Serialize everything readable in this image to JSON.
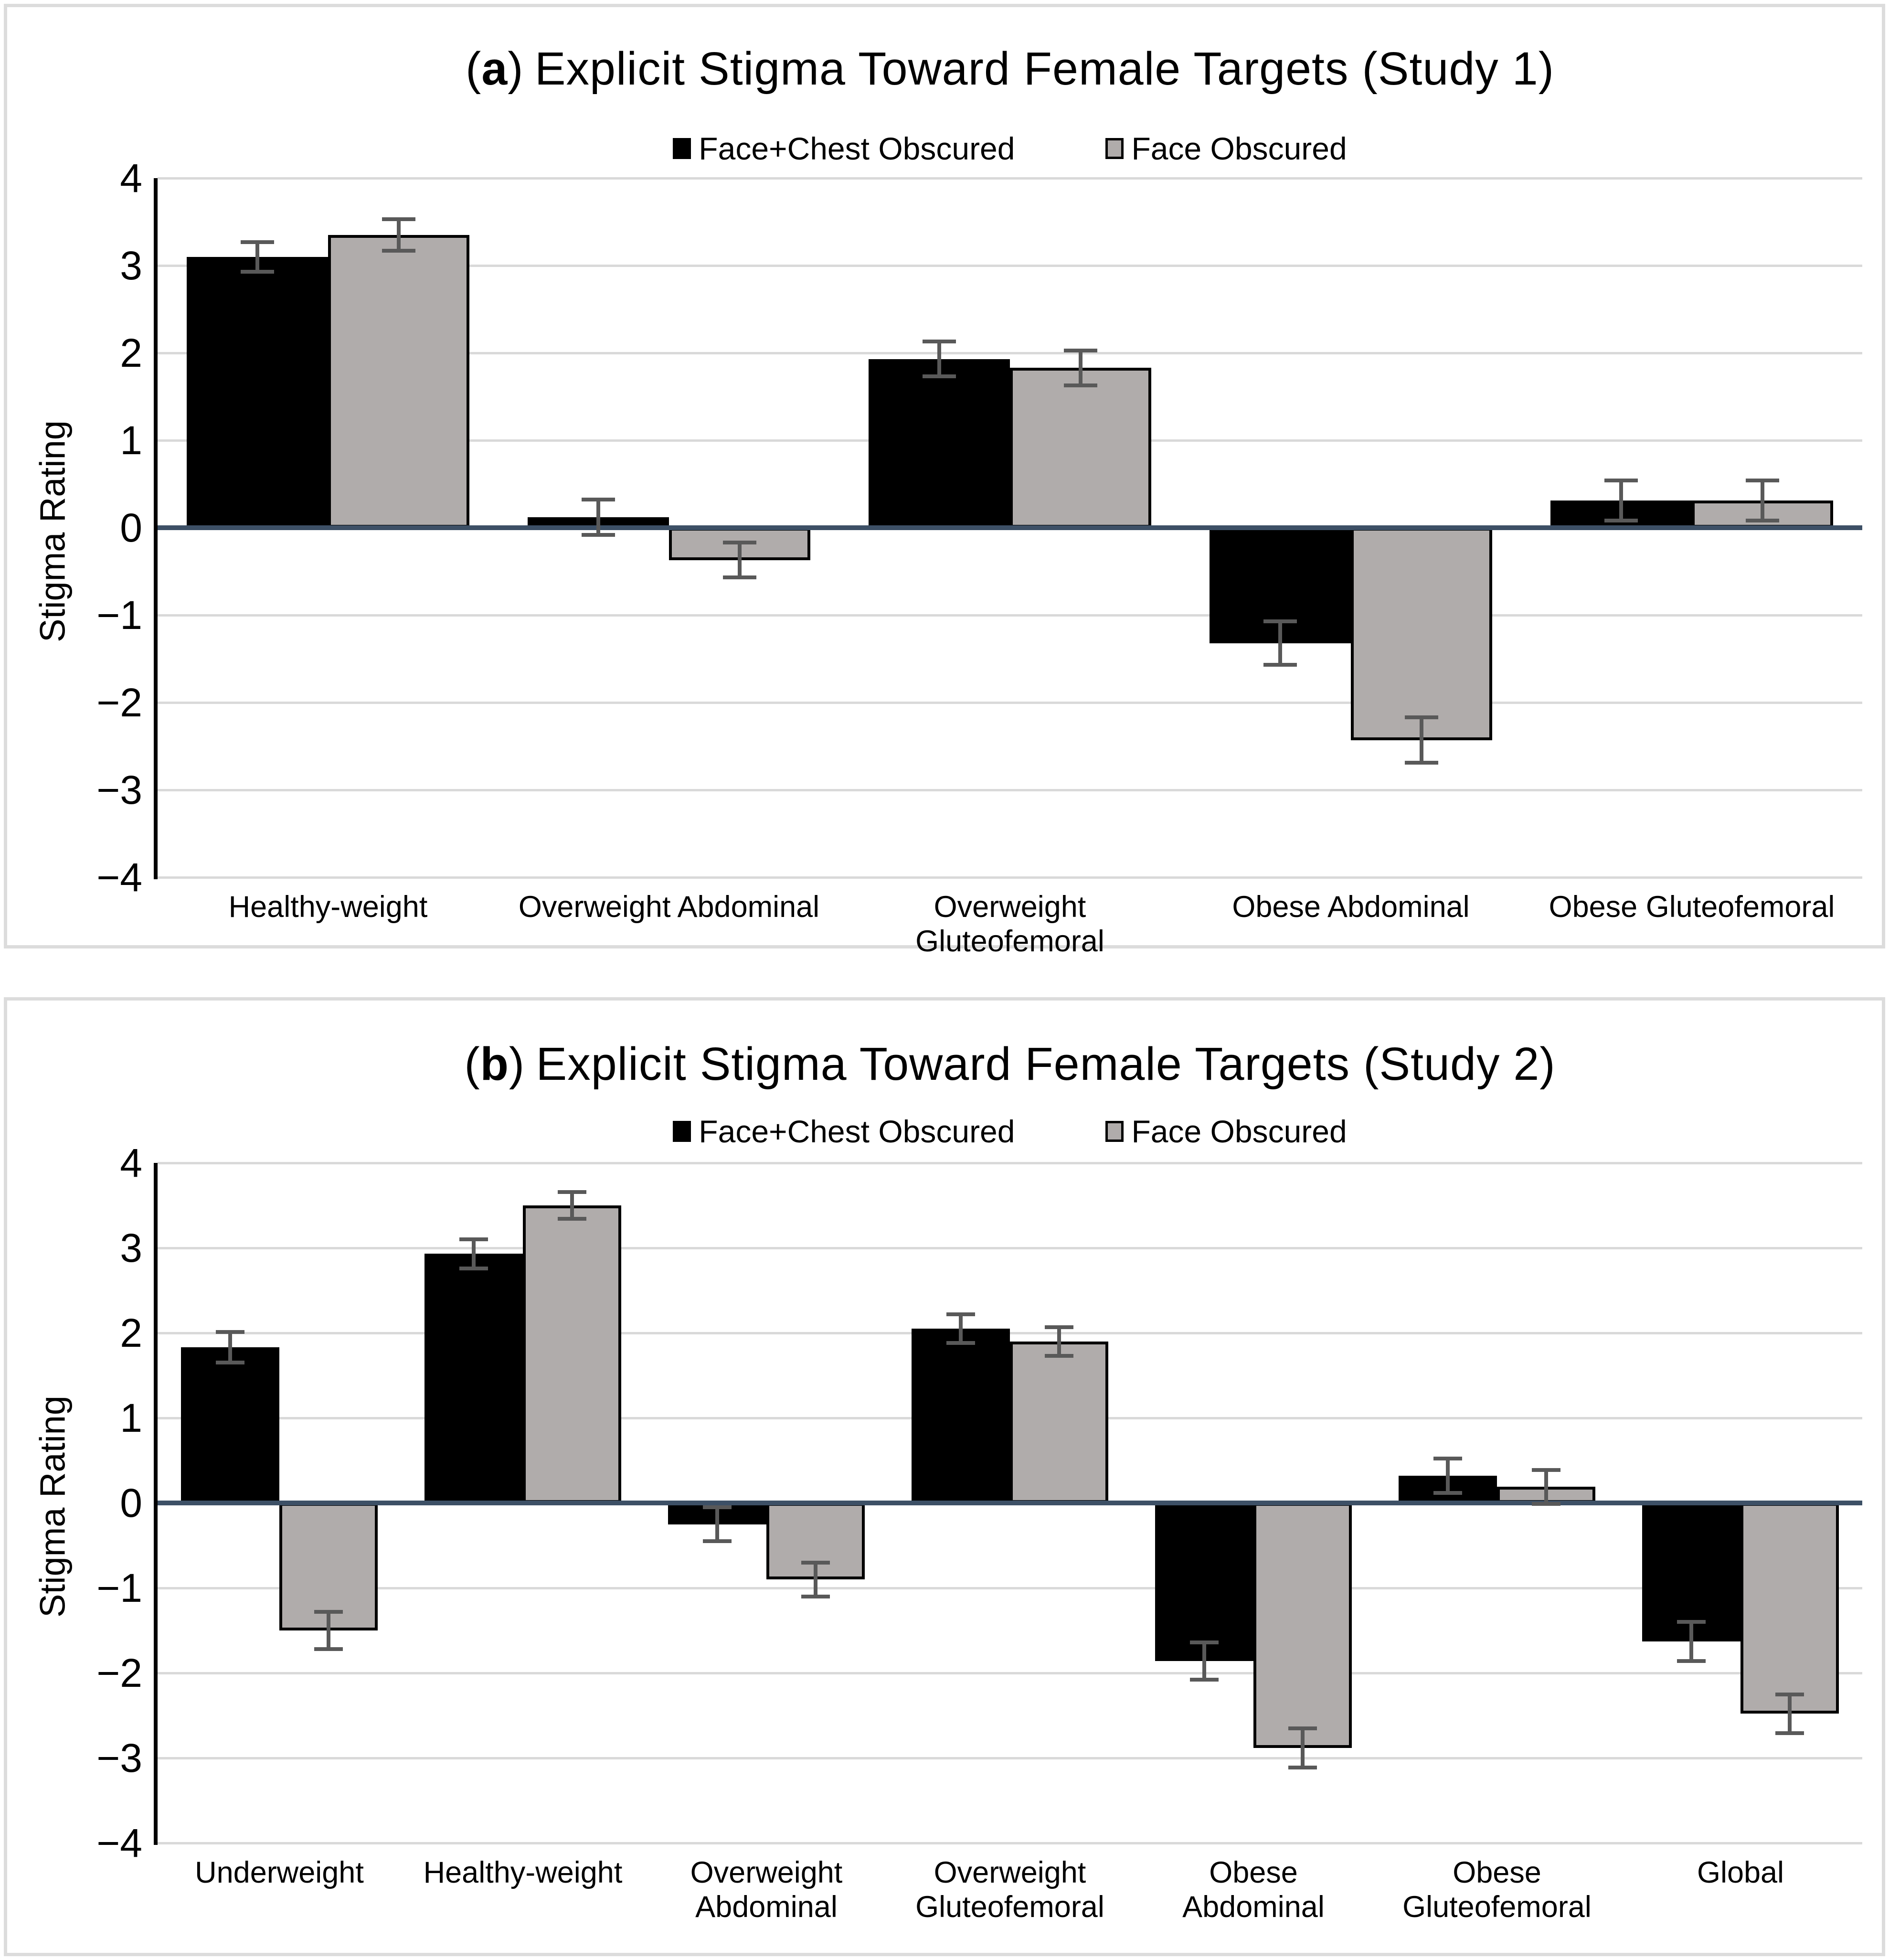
{
  "figure": {
    "background": "#ffffff",
    "panel_border_color": "#dcdcdc"
  },
  "colors": {
    "bar_black": "#000000",
    "bar_gray": "#b0acab",
    "bar_outline": "#000000",
    "error_bar": "#595959",
    "zero_axis_line": "#3d5066",
    "gridline": "#d9d9d9",
    "y_axis_line": "#000000"
  },
  "chart_data": [
    {
      "type": "bar",
      "panel_open": "(",
      "panel_letter": "a",
      "panel_close": ")",
      "title": "Explicit Stigma Toward Female Targets (Study 1)",
      "ylabel": "Stigma Rating",
      "ylim": [
        -4,
        4
      ],
      "ytick_labels": [
        "4",
        "3",
        "2",
        "1",
        "0",
        "−1",
        "−2",
        "−3",
        "−4"
      ],
      "ytick_values": [
        4,
        3,
        2,
        1,
        0,
        -1,
        -2,
        -3,
        -4
      ],
      "grid": true,
      "legend_position": "top-center",
      "categories": [
        "Healthy-weight",
        "Overweight Abdominal",
        "Overweight Gluteofemoral",
        "Obese Abdominal",
        "Obese Gluteofemoral"
      ],
      "category_label_lines": [
        [
          "Healthy-weight"
        ],
        [
          "Overweight Abdominal"
        ],
        [
          "Overweight",
          "Gluteofemoral"
        ],
        [
          "Obese Abdominal"
        ],
        [
          "Obese Gluteofemoral"
        ]
      ],
      "series": [
        {
          "name": "Face+Chest Obscured",
          "color": "#000000",
          "values": [
            3.1,
            0.12,
            1.93,
            -1.32,
            0.31
          ],
          "errors": [
            0.17,
            0.2,
            0.2,
            0.25,
            0.23
          ]
        },
        {
          "name": "Face Obscured",
          "color": "#b0acab",
          "values": [
            3.35,
            -0.37,
            1.83,
            -2.43,
            0.31
          ],
          "errors": [
            0.18,
            0.2,
            0.2,
            0.26,
            0.23
          ]
        }
      ]
    },
    {
      "type": "bar",
      "panel_open": "(",
      "panel_letter": "b",
      "panel_close": ")",
      "title": "Explicit Stigma Toward Female Targets (Study 2)",
      "ylabel": "Stigma Rating",
      "ylim": [
        -4,
        4
      ],
      "ytick_labels": [
        "4",
        "3",
        "2",
        "1",
        "0",
        "−1",
        "−2",
        "−3",
        "−4"
      ],
      "ytick_values": [
        4,
        3,
        2,
        1,
        0,
        -1,
        -2,
        -3,
        -4
      ],
      "grid": true,
      "legend_position": "top-center",
      "categories": [
        "Underweight",
        "Healthy-weight",
        "Overweight Abdominal",
        "Overweight Gluteofemoral",
        "Obese Abdominal",
        "Obese Gluteofemoral",
        "Global"
      ],
      "category_label_lines": [
        [
          "Underweight"
        ],
        [
          "Healthy-weight"
        ],
        [
          "Overweight",
          "Abdominal"
        ],
        [
          "Overweight",
          "Gluteofemoral"
        ],
        [
          "Obese",
          "Abdominal"
        ],
        [
          "Obese",
          "Gluteofemoral"
        ],
        [
          "Global"
        ]
      ],
      "series": [
        {
          "name": "Face+Chest Obscured",
          "color": "#000000",
          "values": [
            1.83,
            2.93,
            -0.25,
            2.05,
            -1.86,
            0.32,
            -1.63
          ],
          "errors": [
            0.18,
            0.17,
            0.2,
            0.17,
            0.22,
            0.2,
            0.23
          ]
        },
        {
          "name": "Face Obscured",
          "color": "#b0acab",
          "values": [
            -1.5,
            3.5,
            -0.9,
            1.9,
            -2.88,
            0.19,
            -2.48
          ],
          "errors": [
            0.22,
            0.16,
            0.2,
            0.17,
            0.23,
            0.2,
            0.23
          ]
        }
      ]
    }
  ]
}
